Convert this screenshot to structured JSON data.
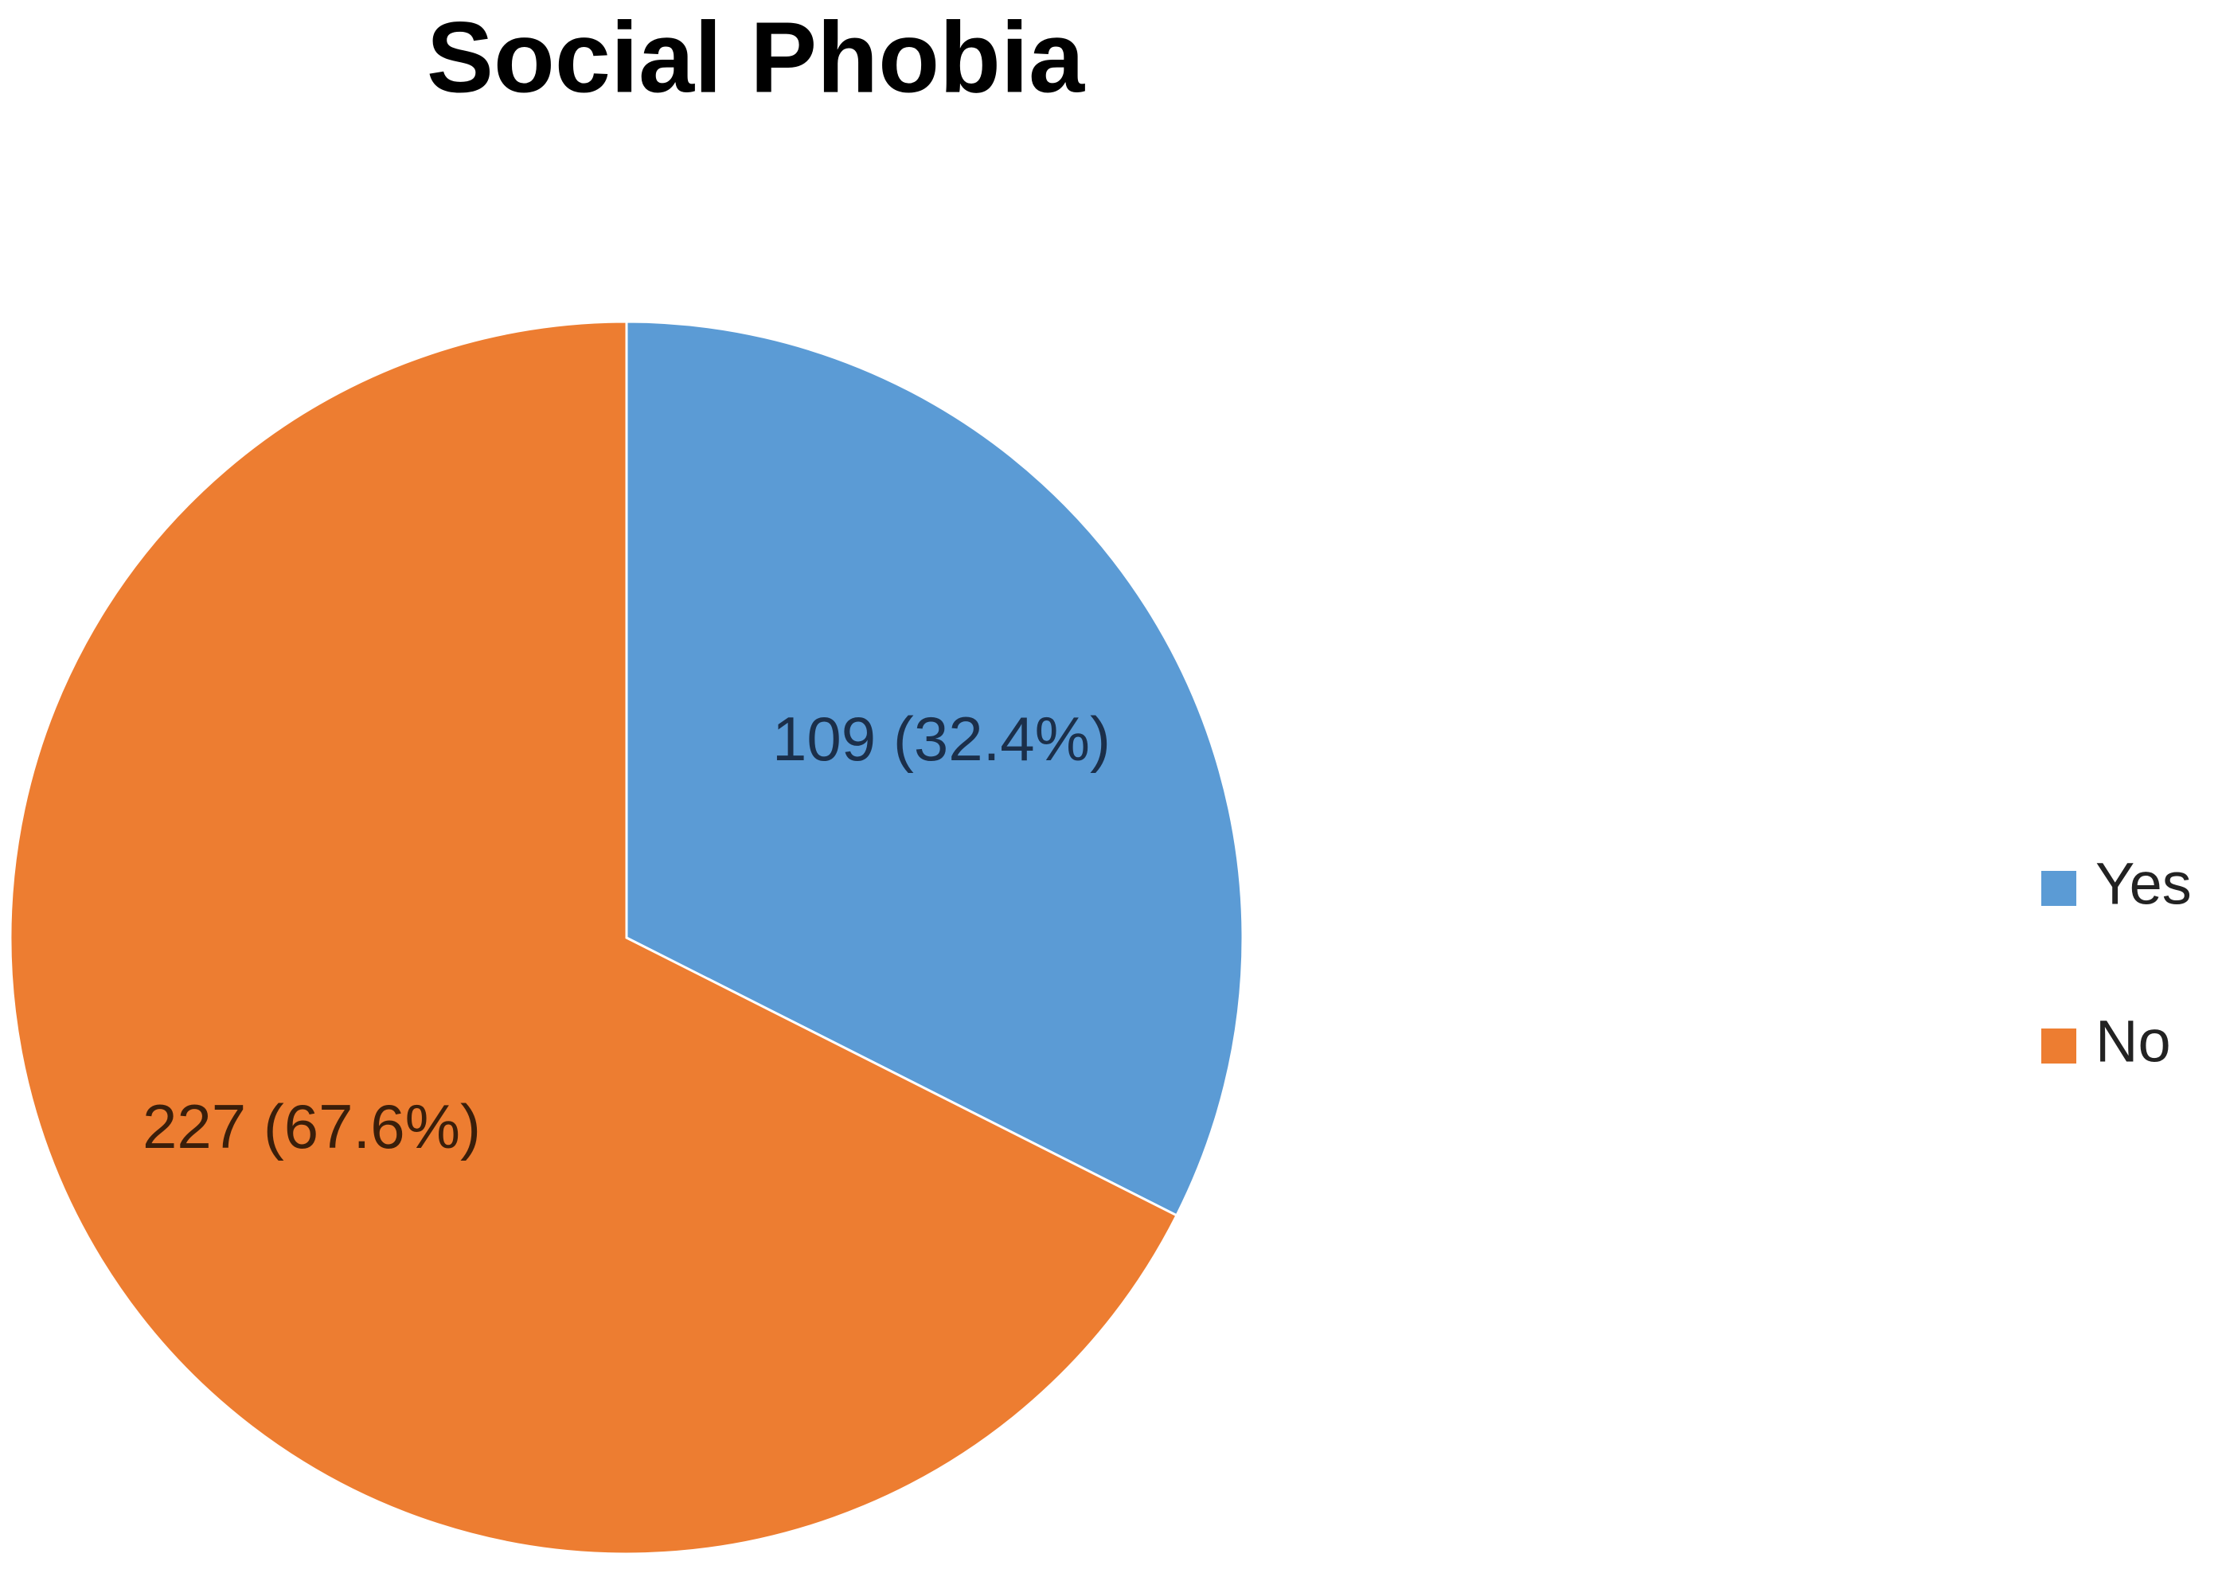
{
  "chart_data": {
    "type": "pie",
    "title": "Social Phobia",
    "categories": [
      "Yes",
      "No"
    ],
    "values": [
      109,
      227
    ],
    "value_labels": [
      "109 (32.4%)",
      "227 (67.6%)"
    ],
    "colors": [
      "#5b9bd5",
      "#ed7d31"
    ],
    "legend": "right"
  }
}
